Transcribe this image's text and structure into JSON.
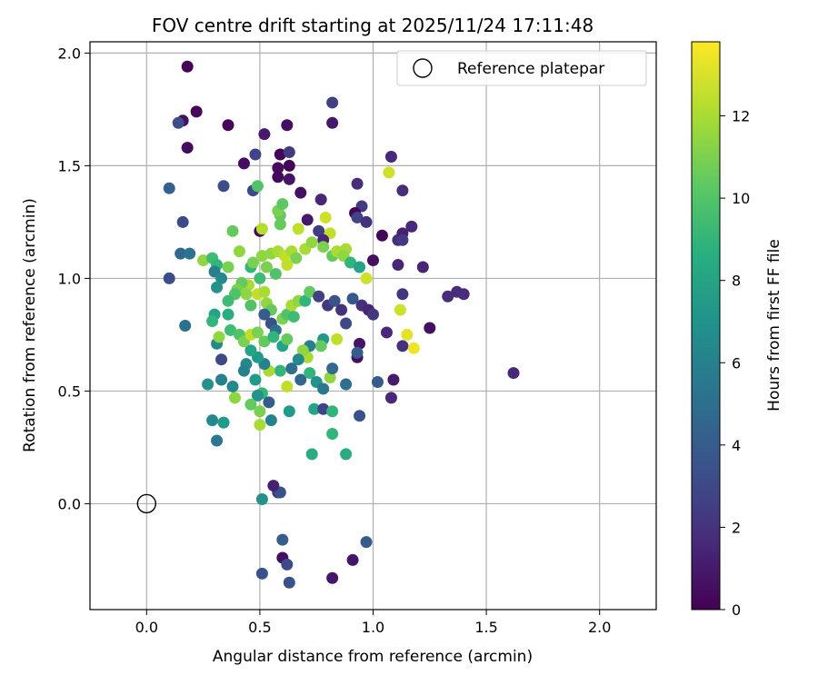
{
  "chart_data": {
    "type": "scatter",
    "title": "FOV centre drift starting at 2025/11/24 17:11:48",
    "xlabel": "Angular distance from reference (arcmin)",
    "ylabel": "Rotation from reference (arcmin)",
    "xlim": [
      -0.25,
      2.25
    ],
    "ylim": [
      -0.47,
      2.05
    ],
    "xticks": [
      0.0,
      0.5,
      1.0,
      1.5,
      2.0
    ],
    "xtick_labels": [
      "0.0",
      "0.5",
      "1.0",
      "1.5",
      "2.0"
    ],
    "yticks": [
      0.0,
      0.5,
      1.0,
      1.5,
      2.0
    ],
    "ytick_labels": [
      "0.0",
      "0.5",
      "1.0",
      "1.5",
      "2.0"
    ],
    "grid": true,
    "legend": {
      "location": "top-right",
      "entries": [
        "Reference platepar"
      ]
    },
    "reference_point": {
      "x": 0.0,
      "y": 0.0,
      "label": "Reference platepar"
    },
    "colorbar": {
      "label": "Hours from first FF file",
      "colormap": "viridis",
      "range": [
        0,
        13.8
      ],
      "ticks": [
        0,
        2,
        4,
        6,
        8,
        10,
        12
      ],
      "tick_labels": [
        "0",
        "2",
        "4",
        "6",
        "8",
        "10",
        "12"
      ]
    },
    "series": [
      {
        "name": "FOV centre drift",
        "points": [
          [
            0.18,
            1.94,
            0.1
          ],
          [
            0.22,
            1.74,
            0.2
          ],
          [
            0.16,
            1.7,
            0.6
          ],
          [
            0.14,
            1.69,
            3.2
          ],
          [
            0.36,
            1.68,
            0.2
          ],
          [
            0.62,
            1.68,
            0.5
          ],
          [
            0.82,
            1.78,
            2.6
          ],
          [
            0.82,
            1.69,
            0.9
          ],
          [
            0.18,
            1.58,
            0.4
          ],
          [
            0.52,
            1.64,
            1.0
          ],
          [
            0.48,
            1.55,
            2.8
          ],
          [
            0.59,
            1.55,
            0.1
          ],
          [
            0.63,
            1.56,
            2.4
          ],
          [
            0.43,
            1.51,
            0.5
          ],
          [
            0.58,
            1.49,
            0.4
          ],
          [
            0.63,
            1.5,
            0.1
          ],
          [
            0.58,
            1.45,
            0.3
          ],
          [
            0.63,
            1.44,
            0.8
          ],
          [
            0.47,
            1.39,
            3.0
          ],
          [
            0.49,
            1.41,
            10.0
          ],
          [
            0.34,
            1.41,
            3.2
          ],
          [
            0.1,
            1.4,
            4.2
          ],
          [
            0.68,
            1.38,
            0.6
          ],
          [
            0.77,
            1.35,
            1.5
          ],
          [
            0.93,
            1.42,
            1.8
          ],
          [
            0.95,
            1.32,
            2.4
          ],
          [
            1.08,
            1.54,
            1.6
          ],
          [
            1.13,
            1.39,
            1.8
          ],
          [
            1.07,
            1.47,
            12.8
          ],
          [
            0.16,
            1.25,
            3.0
          ],
          [
            0.38,
            1.21,
            10.5
          ],
          [
            0.5,
            1.21,
            0.3
          ],
          [
            0.51,
            1.22,
            12.2
          ],
          [
            0.59,
            1.24,
            10.5
          ],
          [
            0.59,
            1.28,
            10.5
          ],
          [
            0.58,
            1.3,
            11.0
          ],
          [
            0.6,
            1.33,
            10.3
          ],
          [
            0.67,
            1.22,
            12.5
          ],
          [
            0.71,
            1.26,
            0.9
          ],
          [
            0.76,
            1.21,
            2.5
          ],
          [
            0.79,
            1.27,
            12.8
          ],
          [
            0.81,
            1.2,
            12.5
          ],
          [
            0.78,
            1.17,
            1.5
          ],
          [
            0.92,
            1.29,
            0.2
          ],
          [
            0.93,
            1.27,
            2.8
          ],
          [
            0.97,
            1.25,
            2.0
          ],
          [
            1.04,
            1.19,
            0.2
          ],
          [
            1.11,
            1.17,
            1.8
          ],
          [
            1.13,
            1.2,
            1.2
          ],
          [
            1.17,
            1.23,
            1.6
          ],
          [
            1.13,
            1.17,
            2.4
          ],
          [
            1.22,
            1.05,
            1.4
          ],
          [
            0.15,
            1.11,
            4.6
          ],
          [
            0.19,
            1.11,
            5.2
          ],
          [
            0.1,
            1.0,
            3.2
          ],
          [
            0.25,
            1.08,
            11.5
          ],
          [
            0.29,
            1.09,
            9.5
          ],
          [
            0.31,
            1.06,
            9.0
          ],
          [
            0.3,
            1.03,
            6.0
          ],
          [
            0.33,
            1.0,
            6.5
          ],
          [
            0.36,
            1.05,
            11.0
          ],
          [
            0.41,
            1.12,
            11.5
          ],
          [
            0.46,
            1.05,
            9.0
          ],
          [
            0.47,
            1.07,
            11.0
          ],
          [
            0.51,
            1.1,
            11.5
          ],
          [
            0.55,
            1.11,
            11.5
          ],
          [
            0.58,
            1.12,
            12.0
          ],
          [
            0.61,
            1.1,
            12.5
          ],
          [
            0.64,
            1.12,
            12.0
          ],
          [
            0.66,
            1.09,
            11.0
          ],
          [
            0.7,
            1.13,
            12.0
          ],
          [
            0.73,
            1.16,
            11.5
          ],
          [
            0.78,
            1.14,
            11.0
          ],
          [
            0.82,
            1.1,
            10.5
          ],
          [
            0.84,
            1.12,
            12.0
          ],
          [
            0.88,
            1.13,
            12.0
          ],
          [
            0.87,
            1.1,
            11.5
          ],
          [
            0.9,
            1.07,
            9.0
          ],
          [
            0.94,
            1.05,
            8.0
          ],
          [
            0.97,
            1.0,
            12.8
          ],
          [
            1.0,
            1.08,
            0.5
          ],
          [
            1.11,
            1.06,
            1.5
          ],
          [
            1.13,
            0.93,
            2.2
          ],
          [
            0.62,
            1.06,
            12.5
          ],
          [
            0.53,
            1.05,
            11.0
          ],
          [
            0.57,
            1.02,
            10.0
          ],
          [
            0.5,
            1.0,
            9.5
          ],
          [
            0.45,
            0.97,
            12.0
          ],
          [
            0.42,
            0.98,
            10.5
          ],
          [
            0.4,
            0.95,
            11.0
          ],
          [
            0.44,
            0.93,
            11.5
          ],
          [
            0.39,
            0.93,
            10.0
          ],
          [
            0.31,
            0.96,
            7.0
          ],
          [
            0.36,
            0.9,
            9.5
          ],
          [
            0.3,
            0.84,
            8.0
          ],
          [
            0.29,
            0.81,
            9.0
          ],
          [
            0.46,
            0.88,
            10.0
          ],
          [
            0.49,
            0.93,
            12.5
          ],
          [
            0.52,
            0.94,
            12.0
          ],
          [
            0.53,
            0.89,
            11.5
          ],
          [
            0.55,
            0.86,
            10.5
          ],
          [
            0.52,
            0.84,
            4.0
          ],
          [
            0.55,
            0.8,
            3.5
          ],
          [
            0.57,
            0.77,
            5.0
          ],
          [
            0.6,
            0.82,
            11.0
          ],
          [
            0.62,
            0.84,
            10.0
          ],
          [
            0.64,
            0.88,
            12.0
          ],
          [
            0.67,
            0.9,
            11.5
          ],
          [
            0.65,
            0.83,
            9.5
          ],
          [
            0.7,
            0.9,
            9.0
          ],
          [
            0.72,
            0.94,
            10.5
          ],
          [
            0.76,
            0.92,
            2.6
          ],
          [
            0.8,
            0.88,
            2.2
          ],
          [
            0.83,
            0.9,
            3.5
          ],
          [
            0.86,
            0.86,
            2.0
          ],
          [
            0.88,
            0.8,
            3.0
          ],
          [
            0.91,
            0.91,
            3.8
          ],
          [
            0.95,
            0.88,
            2.0
          ],
          [
            0.98,
            0.86,
            1.4
          ],
          [
            1.0,
            0.84,
            2.2
          ],
          [
            1.12,
            0.86,
            12.8
          ],
          [
            1.06,
            0.76,
            1.6
          ],
          [
            1.13,
            0.7,
            2.0
          ],
          [
            1.15,
            0.75,
            13.2
          ],
          [
            1.18,
            0.69,
            13.5
          ],
          [
            1.25,
            0.78,
            0.6
          ],
          [
            1.33,
            0.92,
            1.8
          ],
          [
            1.37,
            0.94,
            1.8
          ],
          [
            1.4,
            0.93,
            1.8
          ],
          [
            1.62,
            0.58,
            1.6
          ],
          [
            0.94,
            0.71,
            0.8
          ],
          [
            0.93,
            0.65,
            0.5
          ],
          [
            0.93,
            0.67,
            4.0
          ],
          [
            0.84,
            0.73,
            12.5
          ],
          [
            0.78,
            0.73,
            7.5
          ],
          [
            0.77,
            0.7,
            10.5
          ],
          [
            0.72,
            0.7,
            6.0
          ],
          [
            0.71,
            0.65,
            12.0
          ],
          [
            0.69,
            0.68,
            11.5
          ],
          [
            0.67,
            0.64,
            6.5
          ],
          [
            0.64,
            0.6,
            5.0
          ],
          [
            0.68,
            0.55,
            4.5
          ],
          [
            0.72,
            0.58,
            9.0
          ],
          [
            0.75,
            0.54,
            7.0
          ],
          [
            0.78,
            0.51,
            5.5
          ],
          [
            0.81,
            0.56,
            11.5
          ],
          [
            0.82,
            0.6,
            4.8
          ],
          [
            0.62,
            0.52,
            12.5
          ],
          [
            0.59,
            0.59,
            9.0
          ],
          [
            0.54,
            0.59,
            12.0
          ],
          [
            0.52,
            0.62,
            6.0
          ],
          [
            0.49,
            0.65,
            7.5
          ],
          [
            0.46,
            0.68,
            8.0
          ],
          [
            0.44,
            0.62,
            6.5
          ],
          [
            0.43,
            0.59,
            6.0
          ],
          [
            0.48,
            0.55,
            7.5
          ],
          [
            0.51,
            0.49,
            9.0
          ],
          [
            0.49,
            0.48,
            7.0
          ],
          [
            0.46,
            0.44,
            10.5
          ],
          [
            0.54,
            0.45,
            4.0
          ],
          [
            0.55,
            0.37,
            6.0
          ],
          [
            0.63,
            0.41,
            7.5
          ],
          [
            0.74,
            0.42,
            8.0
          ],
          [
            0.78,
            0.42,
            2.8
          ],
          [
            0.82,
            0.41,
            9.0
          ],
          [
            0.82,
            0.31,
            9.0
          ],
          [
            0.73,
            0.22,
            8.5
          ],
          [
            0.88,
            0.22,
            8.5
          ],
          [
            0.94,
            0.39,
            3.5
          ],
          [
            1.02,
            0.54,
            4.0
          ],
          [
            1.09,
            0.55,
            1.0
          ],
          [
            1.08,
            0.47,
            1.6
          ],
          [
            0.88,
            0.53,
            5.0
          ],
          [
            0.5,
            0.41,
            11.0
          ],
          [
            0.5,
            0.35,
            12.0
          ],
          [
            0.39,
            0.47,
            11.5
          ],
          [
            0.38,
            0.52,
            6.5
          ],
          [
            0.33,
            0.55,
            6.0
          ],
          [
            0.27,
            0.53,
            7.0
          ],
          [
            0.31,
            0.71,
            6.5
          ],
          [
            0.33,
            0.64,
            3.0
          ],
          [
            0.32,
            0.74,
            11.5
          ],
          [
            0.37,
            0.77,
            9.5
          ],
          [
            0.41,
            0.75,
            10.0
          ],
          [
            0.43,
            0.72,
            11.0
          ],
          [
            0.46,
            0.75,
            12.5
          ],
          [
            0.49,
            0.76,
            11.0
          ],
          [
            0.52,
            0.72,
            10.5
          ],
          [
            0.56,
            0.74,
            9.0
          ],
          [
            0.6,
            0.7,
            8.0
          ],
          [
            0.62,
            0.73,
            10.5
          ],
          [
            0.36,
            0.84,
            8.5
          ],
          [
            0.17,
            0.79,
            5.0
          ],
          [
            0.29,
            0.37,
            6.5
          ],
          [
            0.34,
            0.36,
            7.5
          ],
          [
            0.31,
            0.28,
            5.5
          ],
          [
            0.51,
            0.02,
            7.0
          ],
          [
            0.58,
            0.05,
            2.0
          ],
          [
            0.59,
            0.05,
            3.5
          ],
          [
            0.56,
            0.08,
            1.2
          ],
          [
            0.6,
            -0.16,
            4.0
          ],
          [
            0.6,
            -0.24,
            0.5
          ],
          [
            0.62,
            -0.27,
            3.0
          ],
          [
            0.51,
            -0.31,
            3.5
          ],
          [
            0.63,
            -0.35,
            3.5
          ],
          [
            0.82,
            -0.33,
            0.8
          ],
          [
            0.91,
            -0.25,
            0.8
          ],
          [
            0.97,
            -0.17,
            4.0
          ]
        ]
      }
    ]
  }
}
